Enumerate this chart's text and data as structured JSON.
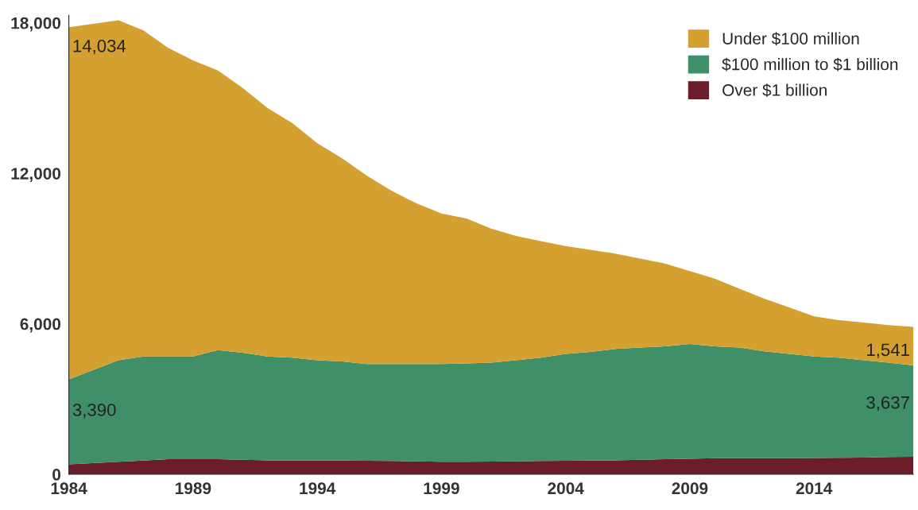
{
  "chart_data": {
    "type": "area",
    "stacked": true,
    "x": [
      1984,
      1986,
      1987,
      1988,
      1989,
      1990,
      1991,
      1992,
      1993,
      1994,
      1995,
      1996,
      1997,
      1998,
      1999,
      2000,
      2001,
      2002,
      2003,
      2004,
      2005,
      2006,
      2007,
      2008,
      2009,
      2010,
      2011,
      2012,
      2013,
      2014,
      2015,
      2016,
      2017,
      2018
    ],
    "series": [
      {
        "name": "Over $1 billion",
        "color": "#6b1d2a",
        "values": [
          400,
          500,
          550,
          600,
          600,
          600,
          580,
          560,
          550,
          550,
          550,
          540,
          530,
          520,
          500,
          500,
          510,
          520,
          530,
          540,
          550,
          560,
          580,
          600,
          620,
          640,
          640,
          640,
          640,
          650,
          660,
          670,
          690,
          700
        ]
      },
      {
        "name": "$100 million to $1 billion",
        "color": "#3f9068",
        "values": [
          3390,
          4050,
          4150,
          4100,
          4100,
          4350,
          4270,
          4140,
          4100,
          4000,
          3950,
          3860,
          3870,
          3880,
          3900,
          3920,
          3940,
          4030,
          4120,
          4260,
          4330,
          4440,
          4470,
          4500,
          4580,
          4460,
          4410,
          4260,
          4160,
          4050,
          3990,
          3880,
          3760,
          3637
        ]
      },
      {
        "name": "Under $100 million",
        "color": "#d4a030",
        "values": [
          14034,
          13550,
          13000,
          12300,
          11800,
          11150,
          10550,
          9900,
          9350,
          8650,
          8100,
          7500,
          6900,
          6400,
          6000,
          5780,
          5350,
          4950,
          4650,
          4300,
          4070,
          3800,
          3550,
          3300,
          2900,
          2700,
          2350,
          2100,
          1850,
          1600,
          1500,
          1500,
          1500,
          1541
        ]
      }
    ],
    "xlim": [
      1984,
      2018
    ],
    "xticks": [
      1984,
      1989,
      1994,
      1999,
      2004,
      2009,
      2014
    ],
    "ylim": [
      0,
      18300
    ],
    "yticks": [
      {
        "value": 0,
        "label": "0"
      },
      {
        "value": 6000,
        "label": "6,000"
      },
      {
        "value": 12000,
        "label": "12,000"
      },
      {
        "value": 18000,
        "label": "18,000"
      }
    ],
    "annotations": [
      "14,034",
      "3,390",
      "1,541",
      "3,637"
    ],
    "grid": false,
    "legend": "top right"
  }
}
